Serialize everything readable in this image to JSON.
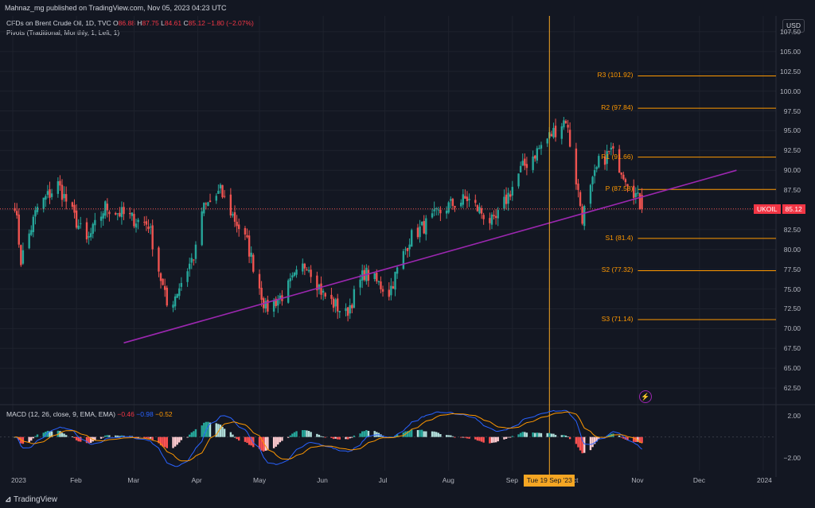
{
  "header": {
    "publisher": "Mahnaz_mg published on TradingView.com, Nov 05, 2023 04:23 UTC"
  },
  "legend": {
    "instrument_prefix": "CFDs on Brent Crude Oil, 1D, TVC",
    "open_label": "O",
    "open": "86.88",
    "high_label": "H",
    "high": "87.75",
    "low_label": "L",
    "low": "84.61",
    "close_label": "C",
    "close": "85.12",
    "change": "−1.80 (−2.07%)",
    "pivots": "Pivots (Traditional, Monthly, 1, Left, 1)",
    "macd_label": "MACD (12, 26, close, 9, EMA, EMA)",
    "macd_hist": "−0.46",
    "macd_line": "−0.98",
    "macd_signal": "−0.52"
  },
  "currency_button": "USD",
  "price_axis_ticks": [
    "107.50",
    "105.00",
    "102.50",
    "100.00",
    "97.50",
    "95.00",
    "92.50",
    "90.00",
    "87.50",
    "85.00",
    "82.50",
    "80.00",
    "77.50",
    "75.00",
    "72.50",
    "70.00",
    "67.50",
    "65.00",
    "62.50"
  ],
  "macd_axis_ticks": [
    "2.00",
    "−2.00"
  ],
  "time_axis_ticks": [
    "2023",
    "Feb",
    "Mar",
    "Apr",
    "May",
    "Jun",
    "Jul",
    "Aug",
    "Sep",
    "Oct",
    "Nov",
    "Dec",
    "2024"
  ],
  "last_price": {
    "symbol": "UKOIL",
    "value": "85.12"
  },
  "crosshair_date": "Tue 19 Sep '23",
  "pivots": [
    {
      "label": "R3 (101.92)",
      "value": 101.92
    },
    {
      "label": "R2 (97.84)",
      "value": 97.84
    },
    {
      "label": "R1 (91.66)",
      "value": 91.66
    },
    {
      "label": "P (87.58)",
      "value": 87.58
    },
    {
      "label": "S1 (81.4)",
      "value": 81.4
    },
    {
      "label": "S2 (77.32)",
      "value": 77.32
    },
    {
      "label": "S3 (71.14)",
      "value": 71.14
    }
  ],
  "colors": {
    "up": "#26a69a",
    "down": "#ef5350",
    "pivot": "#ff9800",
    "trendline": "#9c27b0",
    "macd": "#2962ff",
    "signal": "#ff9800"
  },
  "footer_brand": "TradingView",
  "icons": {
    "alert": "lightning-icon",
    "logo": "tradingview-logo-icon"
  },
  "chart_data": {
    "type": "candlestick",
    "title": "",
    "ylim": [
      60.5,
      109.5
    ],
    "close_path_keypoints": [
      [
        "2023-01-02",
        85.9
      ],
      [
        "2023-01-05",
        78.6
      ],
      [
        "2023-01-13",
        85.3
      ],
      [
        "2023-01-23",
        88.2
      ],
      [
        "2023-02-06",
        80.9
      ],
      [
        "2023-02-15",
        85.4
      ],
      [
        "2023-02-28",
        83.9
      ],
      [
        "2023-03-08",
        83.2
      ],
      [
        "2023-03-17",
        72.9
      ],
      [
        "2023-03-20",
        73.7
      ],
      [
        "2023-03-31",
        79.8
      ],
      [
        "2023-04-03",
        84.9
      ],
      [
        "2023-04-12",
        87.3
      ],
      [
        "2023-04-25",
        80.8
      ],
      [
        "2023-05-04",
        72.5
      ],
      [
        "2023-05-12",
        74.2
      ],
      [
        "2023-05-24",
        78.4
      ],
      [
        "2023-06-01",
        74.3
      ],
      [
        "2023-06-12",
        71.8
      ],
      [
        "2023-06-21",
        77.1
      ],
      [
        "2023-07-03",
        74.6
      ],
      [
        "2023-07-13",
        81.4
      ],
      [
        "2023-07-31",
        85.4
      ],
      [
        "2023-08-10",
        86.4
      ],
      [
        "2023-08-23",
        83.2
      ],
      [
        "2023-09-05",
        90.0
      ],
      [
        "2023-09-19",
        94.3
      ],
      [
        "2023-09-27",
        96.5
      ],
      [
        "2023-10-05",
        84.1
      ],
      [
        "2023-10-13",
        90.9
      ],
      [
        "2023-10-19",
        92.4
      ],
      [
        "2023-10-30",
        87.5
      ],
      [
        "2023-11-03",
        85.1
      ]
    ]
  }
}
